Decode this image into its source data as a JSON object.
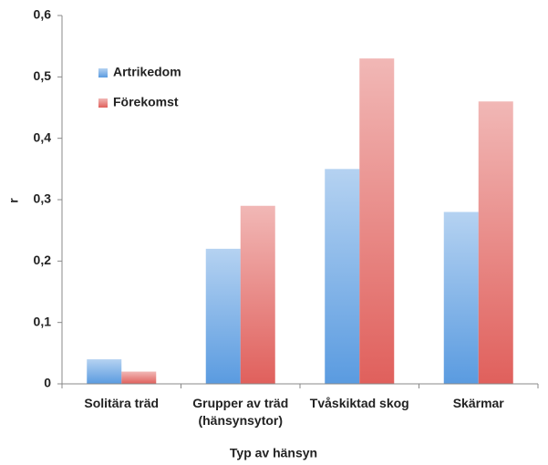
{
  "chart_data": {
    "type": "bar",
    "xlabel": "Typ av hänsyn",
    "ylabel": "r",
    "categories": [
      "Solitära träd",
      "Grupper av träd\n(hänsynsytor)",
      "Tvåskiktad skog",
      "Skärmar"
    ],
    "series": [
      {
        "name": "Artrikedom",
        "color": "#5a9be0",
        "values": [
          0.04,
          0.22,
          0.35,
          0.28
        ]
      },
      {
        "name": "Förekomst",
        "color": "#e0605c",
        "values": [
          0.02,
          0.29,
          0.53,
          0.46
        ]
      }
    ],
    "ylim": [
      0,
      0.6
    ],
    "yticks": [
      0,
      {
        "value": 0.1,
        "label": "0,1"
      },
      {
        "value": 0.2,
        "label": "0,2"
      },
      {
        "value": 0.3,
        "label": "0,3"
      },
      {
        "value": 0.4,
        "label": "0,4"
      },
      {
        "value": 0.5,
        "label": "0,5"
      },
      {
        "value": 0.6,
        "label": "0,6"
      }
    ],
    "grid": false,
    "legend": "upper left"
  }
}
